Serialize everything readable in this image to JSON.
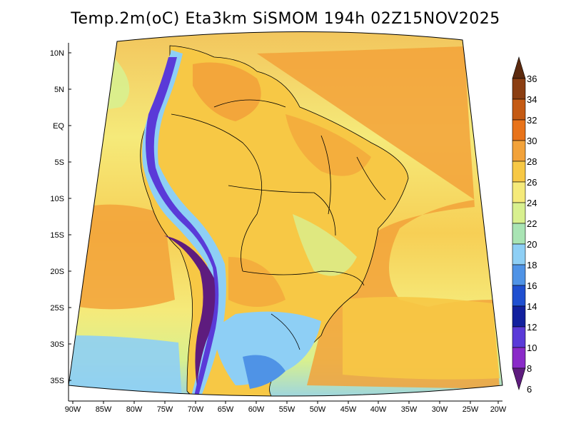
{
  "title": "Temp.2m(oC) Eta3km SiSMOM 194h 02Z15NOV2025",
  "lat_labels": [
    "10N",
    "5N",
    "EQ",
    "5S",
    "10S",
    "15S",
    "20S",
    "25S",
    "30S",
    "35S"
  ],
  "lon_labels": [
    "90W",
    "85W",
    "80W",
    "75W",
    "70W",
    "65W",
    "60W",
    "55W",
    "50W",
    "45W",
    "40W",
    "35W",
    "30W",
    "25W",
    "20W"
  ],
  "colorbar": {
    "labels": [
      "36",
      "34",
      "32",
      "30",
      "28",
      "26",
      "24",
      "22",
      "20",
      "18",
      "16",
      "14",
      "12",
      "10",
      "8",
      "6"
    ],
    "colors": [
      "#5c2a0e",
      "#8b3e12",
      "#c45a14",
      "#e8731a",
      "#f2a23a",
      "#f7c845",
      "#f5ea7a",
      "#d8f08f",
      "#a9e4b4",
      "#8ecff5",
      "#4f93e6",
      "#1f4fd0",
      "#12209e",
      "#5a3ad8",
      "#8a2ac8",
      "#5e1c7e"
    ]
  },
  "field_colors": {
    "ocean_warm": "#f2a23a",
    "ocean_mid": "#f5ea7a",
    "ocean_cool": "#a9e4b4",
    "ocean_cold": "#8ecff5",
    "land_main": "#f7c845",
    "land_hot": "#e8731a",
    "andes_cold": "#6a2a9a",
    "south_cold": "#4f93e6"
  }
}
